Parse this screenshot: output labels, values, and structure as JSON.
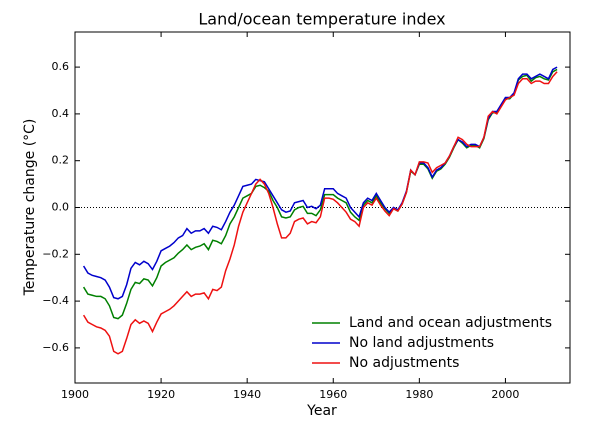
{
  "chart_data": {
    "type": "line",
    "title": "Land/ocean temperature index",
    "xlabel": "Year",
    "ylabel": "Temperature change (°C)",
    "x": [
      1902,
      1903,
      1904,
      1905,
      1906,
      1907,
      1908,
      1909,
      1910,
      1911,
      1912,
      1913,
      1914,
      1915,
      1916,
      1917,
      1918,
      1919,
      1920,
      1921,
      1922,
      1923,
      1924,
      1925,
      1926,
      1927,
      1928,
      1929,
      1930,
      1931,
      1932,
      1933,
      1934,
      1935,
      1936,
      1937,
      1938,
      1939,
      1940,
      1941,
      1942,
      1943,
      1944,
      1945,
      1946,
      1947,
      1948,
      1949,
      1950,
      1951,
      1952,
      1953,
      1954,
      1955,
      1956,
      1957,
      1958,
      1959,
      1960,
      1961,
      1962,
      1963,
      1964,
      1965,
      1966,
      1967,
      1968,
      1969,
      1970,
      1971,
      1972,
      1973,
      1974,
      1975,
      1976,
      1977,
      1978,
      1979,
      1980,
      1981,
      1982,
      1983,
      1984,
      1985,
      1986,
      1987,
      1988,
      1989,
      1990,
      1991,
      1992,
      1993,
      1994,
      1995,
      1996,
      1997,
      1998,
      1999,
      2000,
      2001,
      2002,
      2003,
      2004,
      2005,
      2006,
      2007,
      2008,
      2009,
      2010,
      2011,
      2012
    ],
    "series": [
      {
        "name": "Land and ocean adjustments",
        "color": "#008000",
        "values": [
          -0.34,
          -0.37,
          -0.375,
          -0.38,
          -0.38,
          -0.39,
          -0.42,
          -0.47,
          -0.475,
          -0.46,
          -0.41,
          -0.35,
          -0.32,
          -0.325,
          -0.305,
          -0.31,
          -0.335,
          -0.3,
          -0.25,
          -0.235,
          -0.225,
          -0.215,
          -0.195,
          -0.18,
          -0.16,
          -0.18,
          -0.17,
          -0.165,
          -0.155,
          -0.18,
          -0.14,
          -0.145,
          -0.155,
          -0.12,
          -0.07,
          -0.04,
          0.0,
          0.04,
          0.05,
          0.06,
          0.09,
          0.095,
          0.085,
          0.07,
          0.03,
          0.0,
          -0.04,
          -0.045,
          -0.04,
          -0.01,
          0.0,
          0.005,
          -0.025,
          -0.025,
          -0.035,
          -0.01,
          0.055,
          0.055,
          0.055,
          0.04,
          0.03,
          0.02,
          -0.02,
          -0.04,
          -0.055,
          0.01,
          0.03,
          0.02,
          0.05,
          0.02,
          -0.005,
          -0.025,
          -0.005,
          -0.015,
          0.015,
          0.065,
          0.155,
          0.14,
          0.185,
          0.185,
          0.165,
          0.125,
          0.155,
          0.165,
          0.185,
          0.215,
          0.255,
          0.29,
          0.275,
          0.255,
          0.265,
          0.265,
          0.255,
          0.295,
          0.375,
          0.405,
          0.405,
          0.435,
          0.465,
          0.465,
          0.485,
          0.545,
          0.56,
          0.565,
          0.54,
          0.555,
          0.56,
          0.55,
          0.545,
          0.58,
          0.59
        ]
      },
      {
        "name": "No land adjustments",
        "color": "#0000cc",
        "values": [
          -0.25,
          -0.28,
          -0.29,
          -0.295,
          -0.3,
          -0.31,
          -0.34,
          -0.385,
          -0.39,
          -0.38,
          -0.33,
          -0.26,
          -0.235,
          -0.245,
          -0.23,
          -0.24,
          -0.265,
          -0.23,
          -0.185,
          -0.175,
          -0.165,
          -0.15,
          -0.13,
          -0.12,
          -0.09,
          -0.11,
          -0.1,
          -0.1,
          -0.09,
          -0.11,
          -0.08,
          -0.085,
          -0.095,
          -0.06,
          -0.02,
          0.01,
          0.05,
          0.09,
          0.095,
          0.1,
          0.12,
          0.115,
          0.11,
          0.08,
          0.05,
          0.02,
          -0.01,
          -0.02,
          -0.015,
          0.02,
          0.025,
          0.03,
          0.0,
          0.005,
          -0.005,
          0.01,
          0.08,
          0.08,
          0.08,
          0.06,
          0.05,
          0.04,
          0.0,
          -0.02,
          -0.04,
          0.02,
          0.04,
          0.03,
          0.06,
          0.03,
          0.0,
          -0.02,
          0.0,
          -0.01,
          0.02,
          0.07,
          0.16,
          0.14,
          0.19,
          0.19,
          0.17,
          0.13,
          0.16,
          0.17,
          0.19,
          0.22,
          0.26,
          0.29,
          0.28,
          0.26,
          0.27,
          0.27,
          0.26,
          0.3,
          0.38,
          0.41,
          0.41,
          0.44,
          0.47,
          0.47,
          0.49,
          0.55,
          0.57,
          0.57,
          0.55,
          0.56,
          0.57,
          0.56,
          0.55,
          0.59,
          0.6
        ]
      },
      {
        "name": "No adjustments",
        "color": "#ee1111",
        "values": [
          -0.46,
          -0.49,
          -0.5,
          -0.51,
          -0.515,
          -0.525,
          -0.55,
          -0.615,
          -0.625,
          -0.615,
          -0.56,
          -0.5,
          -0.48,
          -0.495,
          -0.485,
          -0.495,
          -0.53,
          -0.49,
          -0.455,
          -0.445,
          -0.435,
          -0.42,
          -0.4,
          -0.38,
          -0.36,
          -0.38,
          -0.37,
          -0.37,
          -0.365,
          -0.39,
          -0.35,
          -0.355,
          -0.34,
          -0.27,
          -0.22,
          -0.16,
          -0.08,
          -0.02,
          0.02,
          0.06,
          0.1,
          0.12,
          0.1,
          0.06,
          0.0,
          -0.07,
          -0.13,
          -0.13,
          -0.11,
          -0.06,
          -0.05,
          -0.045,
          -0.07,
          -0.06,
          -0.065,
          -0.04,
          0.04,
          0.04,
          0.035,
          0.02,
          0.0,
          -0.02,
          -0.05,
          -0.06,
          -0.08,
          0.0,
          0.02,
          0.01,
          0.04,
          0.01,
          -0.015,
          -0.035,
          -0.005,
          -0.015,
          0.015,
          0.065,
          0.16,
          0.14,
          0.195,
          0.195,
          0.19,
          0.15,
          0.17,
          0.18,
          0.19,
          0.22,
          0.26,
          0.3,
          0.29,
          0.27,
          0.26,
          0.26,
          0.26,
          0.3,
          0.39,
          0.41,
          0.4,
          0.43,
          0.46,
          0.47,
          0.48,
          0.53,
          0.55,
          0.55,
          0.53,
          0.54,
          0.54,
          0.53,
          0.53,
          0.56,
          0.58
        ]
      }
    ],
    "xlim": [
      1900,
      2015
    ],
    "xticks": [
      1900,
      1920,
      1940,
      1960,
      1980,
      2000
    ],
    "ylim": [
      -0.75,
      0.75
    ],
    "yticks": [
      {
        "value": -0.6,
        "label": "−0.6"
      },
      {
        "value": -0.4,
        "label": "−0.4"
      },
      {
        "value": -0.2,
        "label": "−0.2"
      },
      {
        "value": 0,
        "label": "0.0"
      },
      0.2,
      0.4,
      0.6
    ],
    "hline": 0,
    "legend": "lower right"
  }
}
